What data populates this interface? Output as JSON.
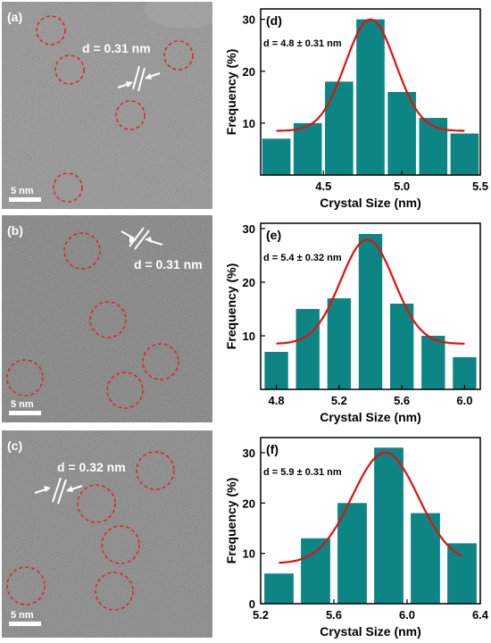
{
  "tem_panels": [
    {
      "label": "(a)",
      "d_spacing": "d = 0.31 nm",
      "scale_bar": "5 nm",
      "tint": "#8d8d8d"
    },
    {
      "label": "(b)",
      "d_spacing": "d = 0.31 nm",
      "scale_bar": "5 nm",
      "tint": "#7a7a7a"
    },
    {
      "label": "(c)",
      "d_spacing": "d = 0.32 nm",
      "scale_bar": "5 nm",
      "tint": "#808080"
    }
  ],
  "colors": {
    "bar": "#0e8585",
    "fit": "#e01010",
    "circle": "#e02020"
  },
  "chart_data": [
    {
      "type": "bar",
      "panel_label": "(d)",
      "annotation": "d = 4.8 ± 0.31 nm",
      "xlabel": "Crystal Size (nm)",
      "ylabel": "Frequency (%)",
      "xlim": [
        4.1,
        5.5
      ],
      "ylim": [
        0,
        32
      ],
      "xticks": [
        4.5,
        5.0,
        5.5
      ],
      "xtick_labels": [
        "4.5",
        "5.0",
        "5.5"
      ],
      "yticks": [
        10,
        20,
        30
      ],
      "ytick_labels": [
        "10",
        "20",
        "30"
      ],
      "bar_width": 0.18,
      "x": [
        4.2,
        4.4,
        4.6,
        4.8,
        5.0,
        5.2,
        5.4
      ],
      "values": [
        7,
        10,
        18,
        30,
        16,
        11,
        8
      ],
      "fit": {
        "type": "gaussian",
        "baseline": 8.5,
        "amplitude": 21.5,
        "center": 4.8,
        "sigma": 0.16,
        "range": [
          4.2,
          5.4
        ]
      }
    },
    {
      "type": "bar",
      "panel_label": "(e)",
      "annotation": "d = 5.4 ± 0.32 nm",
      "xlabel": "Crystal Size (nm)",
      "ylabel": "Frequency (%)",
      "xlim": [
        4.7,
        6.1
      ],
      "ylim": [
        0,
        31
      ],
      "xticks": [
        4.8,
        5.2,
        5.6,
        6.0
      ],
      "xtick_labels": [
        "4.8",
        "5.2",
        "5.6",
        "6.0"
      ],
      "yticks": [
        10,
        20,
        30
      ],
      "ytick_labels": [
        "10",
        "20",
        "30"
      ],
      "bar_width": 0.15,
      "x": [
        4.8,
        5.0,
        5.2,
        5.4,
        5.6,
        5.8,
        6.0
      ],
      "values": [
        7,
        15,
        17,
        29,
        16,
        10,
        6
      ],
      "fit": {
        "type": "gaussian",
        "baseline": 8.5,
        "amplitude": 19.5,
        "center": 5.38,
        "sigma": 0.17,
        "range": [
          4.8,
          6.0
        ]
      }
    },
    {
      "type": "bar",
      "panel_label": "(f)",
      "annotation": "d = 5.9 ± 0.31 nm",
      "xlabel": "Crystal Size (nm)",
      "ylabel": "Frequency (%)",
      "xlim": [
        5.2,
        6.4
      ],
      "ylim": [
        0,
        33
      ],
      "xticks": [
        5.2,
        5.6,
        6.0,
        6.4
      ],
      "xtick_labels": [
        "5.2",
        "5.6",
        "6.0",
        "6.4"
      ],
      "yticks": [
        0,
        10,
        20,
        30
      ],
      "ytick_labels": [
        "0",
        "10",
        "20",
        "30"
      ],
      "bar_width": 0.16,
      "x": [
        5.3,
        5.5,
        5.7,
        5.9,
        6.1,
        6.3
      ],
      "values": [
        6,
        13,
        20,
        31,
        18,
        12
      ],
      "fit": {
        "type": "gaussian",
        "baseline": 8.0,
        "amplitude": 22.0,
        "center": 5.88,
        "sigma": 0.18,
        "range": [
          5.3,
          6.3
        ]
      }
    }
  ]
}
